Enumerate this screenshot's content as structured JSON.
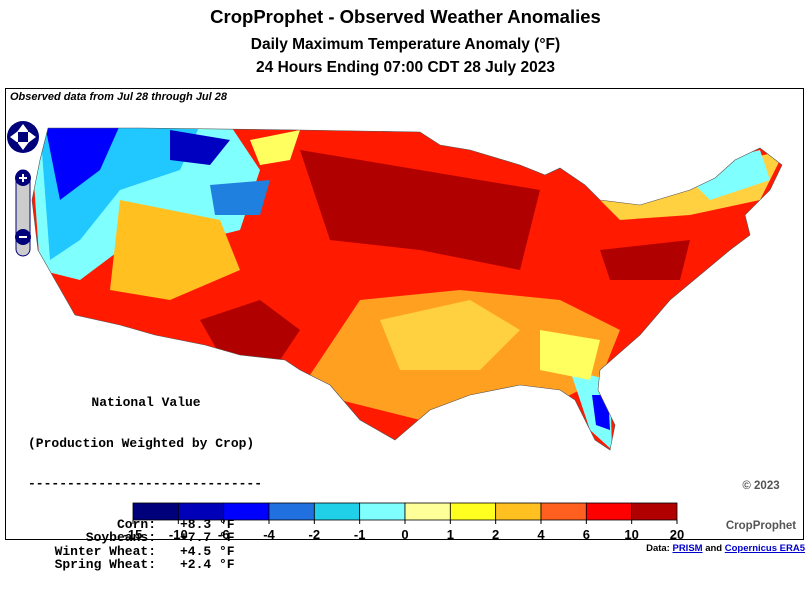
{
  "header": {
    "title": "CropProphet - Observed Weather Anomalies",
    "subtitle": "Daily Maximum Temperature Anomaly (°F)",
    "period": "24 Hours Ending 07:00 CDT 28 July 2023"
  },
  "map": {
    "note": "Observed data from Jul 28 through Jul 28"
  },
  "national": {
    "heading": "National Value",
    "subheading": "(Production Weighted by Crop)",
    "rule": "------------------------------",
    "rows": [
      {
        "crop": "Corn:",
        "value": "+8.3 °F"
      },
      {
        "crop": "Soybeans:",
        "value": "+7.7 °F"
      },
      {
        "crop": "Winter Wheat:",
        "value": "+4.5 °F"
      },
      {
        "crop": "Spring Wheat:",
        "value": "+2.4 °F"
      }
    ]
  },
  "colorbar": {
    "ticks": [
      -15,
      -10,
      -6,
      -4,
      -2,
      -1,
      0,
      1,
      2,
      4,
      6,
      10,
      20
    ],
    "colors": [
      "#00007a",
      "#0000b8",
      "#0000ff",
      "#2070e0",
      "#20d0e8",
      "#80ffff",
      "#ffff99",
      "#ffff20",
      "#ffc020",
      "#ff6020",
      "#ff0000",
      "#b00000"
    ]
  },
  "footer": {
    "copyright": "© 2023",
    "owner": "CropProphet",
    "credit_label": "Data:",
    "links": [
      "PRISM",
      "Copernicus ERA5"
    ],
    "credit_and": "and"
  }
}
